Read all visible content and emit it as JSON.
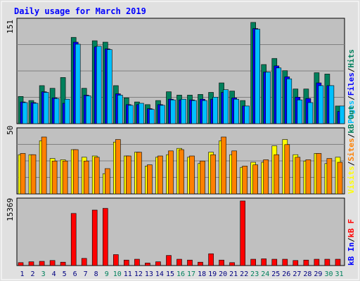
{
  "chart_data": [
    {
      "type": "bar",
      "title": "Daily usage for March 2019",
      "ymax_label": "151",
      "legend_items": [
        "Pages",
        "Files",
        "Hits"
      ],
      "legend_separator": "/",
      "ylim": [
        0,
        151
      ],
      "categories": [
        "1",
        "2",
        "3",
        "4",
        "5",
        "6",
        "7",
        "8",
        "9",
        "10",
        "11",
        "12",
        "13",
        "14",
        "15",
        "16",
        "17",
        "18",
        "19",
        "20",
        "21",
        "22",
        "23",
        "24",
        "25",
        "26",
        "27",
        "28",
        "29",
        "30",
        "31"
      ],
      "series": [
        {
          "name": "Hits",
          "color": "#00805c",
          "values": [
            40,
            34,
            56,
            52,
            68,
            127,
            52,
            122,
            120,
            56,
            38,
            32,
            28,
            34,
            47,
            42,
            42,
            43,
            46,
            60,
            48,
            34,
            149,
            87,
            96,
            78,
            51,
            51,
            75,
            73,
            26
          ]
        },
        {
          "name": "Files",
          "color": "#0000ff",
          "values": [
            32,
            31,
            47,
            38,
            30,
            120,
            42,
            113,
            110,
            44,
            28,
            28,
            22,
            28,
            36,
            35,
            35,
            36,
            36,
            46,
            38,
            26,
            140,
            76,
            85,
            69,
            39,
            37,
            60,
            56,
            18
          ]
        },
        {
          "name": "Pages",
          "color": "#00c0ff",
          "values": [
            31,
            30,
            46,
            37,
            36,
            117,
            41,
            114,
            109,
            42,
            27,
            30,
            21,
            27,
            35,
            36,
            34,
            34,
            39,
            50,
            36,
            26,
            139,
            76,
            82,
            66,
            35,
            31,
            56,
            56,
            26
          ]
        }
      ]
    },
    {
      "type": "bar",
      "ymax_label": "50",
      "legend_items": [
        "Visits",
        "Sites",
        "kB Out"
      ],
      "legend_separator": "/",
      "ylim": [
        0,
        50
      ],
      "categories": [
        "1",
        "2",
        "3",
        "4",
        "5",
        "6",
        "7",
        "8",
        "9",
        "10",
        "11",
        "12",
        "13",
        "14",
        "15",
        "16",
        "17",
        "18",
        "19",
        "20",
        "21",
        "22",
        "23",
        "24",
        "25",
        "26",
        "27",
        "28",
        "29",
        "30",
        "31"
      ],
      "series": [
        {
          "name": "Visits",
          "color": "#ffff00",
          "values": [
            31,
            31,
            42,
            28,
            27,
            35,
            29,
            30,
            16,
            41,
            30,
            33,
            22,
            29,
            31,
            36,
            29,
            24,
            33,
            42,
            31,
            21,
            25,
            25,
            38,
            43,
            31,
            26,
            32,
            24,
            29
          ]
        },
        {
          "name": "Sites",
          "color": "#ff8000",
          "values": [
            32,
            31,
            45,
            26,
            26,
            35,
            26,
            29,
            20,
            43,
            30,
            33,
            23,
            30,
            34,
            35,
            30,
            26,
            31,
            45,
            34,
            22,
            23,
            27,
            31,
            39,
            29,
            27,
            32,
            28,
            25
          ]
        }
      ]
    },
    {
      "type": "bar",
      "ymax_label": "15369",
      "legend_items": [
        "kB In",
        "kB F"
      ],
      "legend_separator": "/",
      "ylim": [
        0,
        15369
      ],
      "categories": [
        "1",
        "2",
        "3",
        "4",
        "5",
        "6",
        "7",
        "8",
        "9",
        "10",
        "11",
        "12",
        "13",
        "14",
        "15",
        "16",
        "17",
        "18",
        "19",
        "20",
        "21",
        "22",
        "23",
        "24",
        "25",
        "26",
        "27",
        "28",
        "29",
        "30",
        "31"
      ],
      "series": [
        {
          "name": "kB F",
          "color": "#ff0000",
          "values": [
            700,
            900,
            1000,
            1200,
            800,
            12400,
            1700,
            13200,
            13600,
            2600,
            1300,
            1500,
            600,
            900,
            2400,
            1500,
            1300,
            800,
            2800,
            1300,
            700,
            15369,
            1500,
            1600,
            1500,
            1500,
            1200,
            1300,
            1500,
            1500,
            1500
          ]
        }
      ]
    }
  ],
  "x_label_colors": [
    "#000080",
    "#000080",
    "#00805c",
    "#000080",
    "#000080",
    "#000080",
    "#000080",
    "#000080",
    "#00805c",
    "#00805c",
    "#000080",
    "#000080",
    "#000080",
    "#000080",
    "#000080",
    "#00805c",
    "#00805c",
    "#000080",
    "#000080",
    "#000080",
    "#000080",
    "#000080",
    "#00805c",
    "#00805c",
    "#000080",
    "#000080",
    "#000080",
    "#000080",
    "#000080",
    "#00805c",
    "#00805c"
  ],
  "colors": {
    "background": "#c0c0c0",
    "outer": "#e0e0e0",
    "title": "#0000ff",
    "gridline": "#808080",
    "axis_label": "#000000",
    "legend_kbin": "#0000ff",
    "legend_kbout": "#00805c",
    "legend_kbf": "#ff0000",
    "legend_sites": "#ff8000",
    "legend_visits": "#ffff00"
  }
}
